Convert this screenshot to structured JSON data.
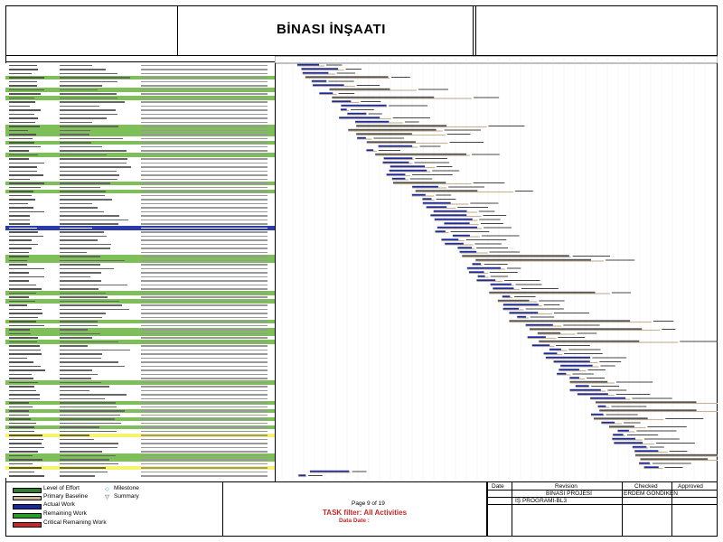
{
  "title": "BİNASI İNŞAATI",
  "footer": {
    "page": "Page 9 of 19",
    "filter": "TASK filter: All Activities",
    "data_date": "Data Date :"
  },
  "legend": [
    {
      "label": "Level of Effort",
      "color": "#2e7d32"
    },
    {
      "label": "Primary Baseline",
      "color": "#c8b59a"
    },
    {
      "label": "Actual Work",
      "color": "#1a2a9c"
    },
    {
      "label": "Remaining Work",
      "color": "#1ea41e"
    },
    {
      "label": "Critical Remaining Work",
      "color": "#c62828"
    },
    {
      "label": "Milestone",
      "color": "#3aa0c8"
    },
    {
      "label": "Summary",
      "color": "#6b6b6b"
    }
  ],
  "revision_block": {
    "date_header": "Date",
    "revision_header": "Revision",
    "checked_header": "Checked",
    "approved_header": "Approved",
    "project": "BİNASI PROJESİ",
    "checker": "ERDEM GÖNDİKEN",
    "program": "İŞ PROGRAMI-BL3"
  },
  "colors": {
    "summary_green": "#7fbf5a",
    "highlight_yellow": "#f7f36a",
    "highlight_blue": "#2a3aa8",
    "bar_blue": "#1a2a9c",
    "bar_baseline": "#c8b59a"
  }
}
